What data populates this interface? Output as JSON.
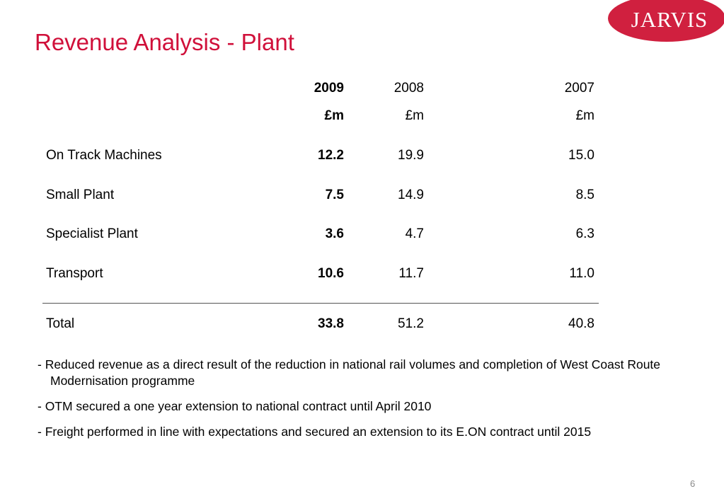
{
  "slide": {
    "title": "Revenue Analysis - Plant",
    "logo_text": "JARVIS",
    "page_number": "6",
    "colors": {
      "title": "#d0103a",
      "logo_bg": "#d0203f",
      "logo_text": "#ffffff"
    }
  },
  "table": {
    "headers": [
      {
        "year": "2009",
        "unit": "£m"
      },
      {
        "year": "2008",
        "unit": "£m"
      },
      {
        "year": "2007",
        "unit": "£m"
      }
    ],
    "rows": [
      {
        "label": "On Track Machines",
        "values": [
          "12.2",
          "19.9",
          "15.0"
        ]
      },
      {
        "label": "Small Plant",
        "values": [
          "7.5",
          "14.9",
          "8.5"
        ]
      },
      {
        "label": "Specialist Plant",
        "values": [
          "3.6",
          "4.7",
          "6.3"
        ]
      },
      {
        "label": "Transport",
        "values": [
          "10.6",
          "11.7",
          "11.0"
        ]
      }
    ],
    "total": {
      "label": "Total",
      "values": [
        "33.8",
        "51.2",
        "40.8"
      ]
    }
  },
  "bullets": [
    "- Reduced revenue as a direct result of the reduction in national rail volumes and completion of West Coast Route Modernisation programme",
    "- OTM secured a one year extension to national contract until April 2010",
    "- Freight performed in line with expectations and secured an extension to its E.ON contract until 2015"
  ]
}
